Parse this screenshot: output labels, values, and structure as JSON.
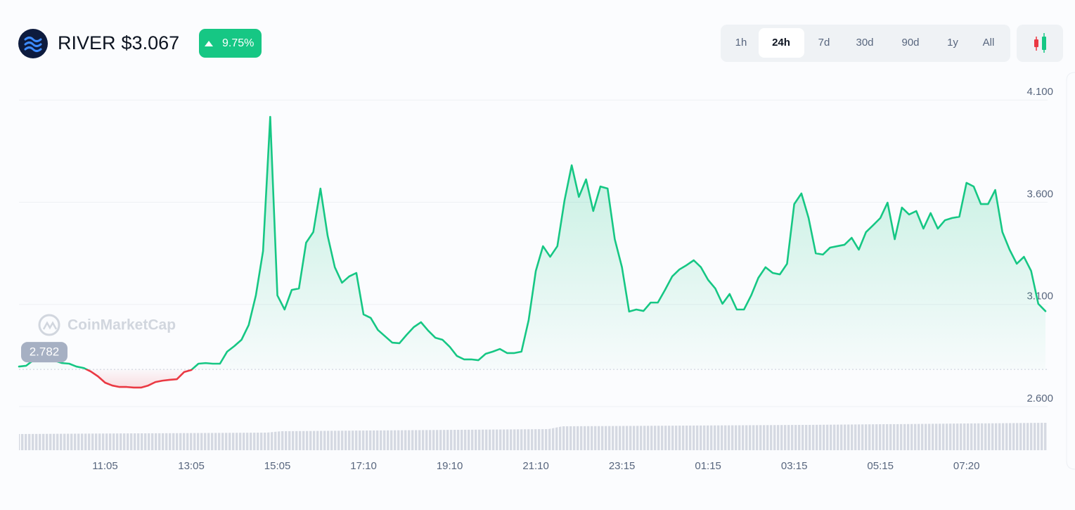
{
  "header": {
    "name": "RIVER",
    "price": "$3.067",
    "change": "9.75%"
  },
  "tabs": [
    "1h",
    "24h",
    "7d",
    "30d",
    "90d",
    "1y",
    "All"
  ],
  "watermark": "CoinMarketCap",
  "chart_data": {
    "type": "line",
    "color": "#16c784",
    "down_color": "#ea3943",
    "baseline": 2.782,
    "ylim": [
      2.6,
      4.18
    ],
    "yticks": [
      {
        "value": 2.6,
        "label": "2.600"
      },
      {
        "value": 3.1,
        "label": "3.100"
      },
      {
        "value": 3.6,
        "label": "3.600"
      },
      {
        "value": 4.1,
        "label": "4.100"
      }
    ],
    "grid": true,
    "categories": [
      null,
      null,
      null,
      null,
      null,
      null,
      null,
      null,
      null,
      null,
      null,
      null,
      "11:05",
      null,
      null,
      null,
      null,
      null,
      null,
      null,
      null,
      null,
      null,
      null,
      "13:05",
      null,
      null,
      null,
      null,
      null,
      null,
      null,
      null,
      null,
      null,
      null,
      "15:05",
      null,
      null,
      null,
      null,
      null,
      null,
      null,
      null,
      null,
      null,
      null,
      "17:10",
      null,
      null,
      null,
      null,
      null,
      null,
      null,
      null,
      null,
      null,
      null,
      "19:10",
      null,
      null,
      null,
      null,
      null,
      null,
      null,
      null,
      null,
      null,
      null,
      "21:10",
      null,
      null,
      null,
      null,
      null,
      null,
      null,
      null,
      null,
      null,
      null,
      "23:15",
      null,
      null,
      null,
      null,
      null,
      null,
      null,
      null,
      null,
      null,
      null,
      "01:15",
      null,
      null,
      null,
      null,
      null,
      null,
      null,
      null,
      null,
      null,
      null,
      "03:15",
      null,
      null,
      null,
      null,
      null,
      null,
      null,
      null,
      null,
      null,
      null,
      "05:15",
      null,
      null,
      null,
      null,
      null,
      null,
      null,
      null,
      null,
      null,
      null,
      "07:20",
      null,
      null,
      null,
      null,
      null,
      null,
      null,
      null,
      null,
      null,
      null
    ],
    "values": [
      2.796,
      2.8,
      2.827,
      2.831,
      2.831,
      2.824,
      2.813,
      2.81,
      2.796,
      2.789,
      2.772,
      2.748,
      2.717,
      2.703,
      2.696,
      2.696,
      2.693,
      2.693,
      2.703,
      2.72,
      2.727,
      2.731,
      2.734,
      2.769,
      2.779,
      2.81,
      2.813,
      2.81,
      2.81,
      2.869,
      2.896,
      2.927,
      2.999,
      3.144,
      3.361,
      4.018,
      3.144,
      3.075,
      3.171,
      3.178,
      3.402,
      3.454,
      3.667,
      3.436,
      3.282,
      3.206,
      3.237,
      3.254,
      3.051,
      3.034,
      2.975,
      2.944,
      2.913,
      2.91,
      2.951,
      2.989,
      3.013,
      2.972,
      2.937,
      2.927,
      2.893,
      2.848,
      2.831,
      2.831,
      2.827,
      2.858,
      2.869,
      2.882,
      2.862,
      2.862,
      2.869,
      3.023,
      3.264,
      3.385,
      3.333,
      3.385,
      3.609,
      3.781,
      3.626,
      3.712,
      3.557,
      3.677,
      3.667,
      3.419,
      3.282,
      3.065,
      3.075,
      3.068,
      3.109,
      3.109,
      3.171,
      3.237,
      3.271,
      3.292,
      3.316,
      3.282,
      3.22,
      3.178,
      3.103,
      3.151,
      3.075,
      3.075,
      3.144,
      3.23,
      3.282,
      3.254,
      3.247,
      3.299,
      3.591,
      3.643,
      3.523,
      3.35,
      3.344,
      3.378,
      3.385,
      3.392,
      3.426,
      3.368,
      3.454,
      3.488,
      3.523,
      3.598,
      3.419,
      3.574,
      3.54,
      3.557,
      3.471,
      3.547,
      3.471,
      3.512,
      3.523,
      3.529,
      3.695,
      3.677,
      3.591,
      3.591,
      3.66,
      3.454,
      3.368,
      3.299,
      3.333,
      3.264,
      3.103,
      3.067
    ]
  }
}
